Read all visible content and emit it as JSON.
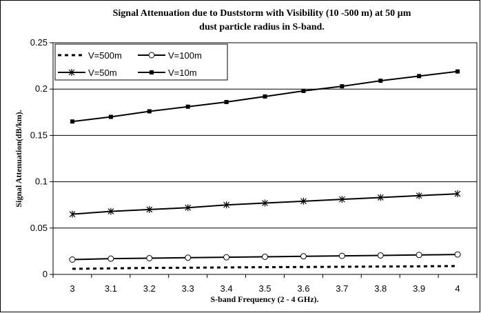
{
  "chart_data": {
    "type": "line",
    "title_line1": "Signal Attenuation due to Duststorm with Visibility (10 -500 m) at 50 µm",
    "title_line2": "dust particle radius in S-band.",
    "xlabel": "S-band Frequency (2 - 4 GHz).",
    "ylabel": "Signal Attenuation(dB/km).",
    "x": [
      3,
      3.1,
      3.2,
      3.3,
      3.4,
      3.5,
      3.6,
      3.7,
      3.8,
      3.9,
      4
    ],
    "x_tick_labels": [
      "3",
      "3.1",
      "3.2",
      "3.3",
      "3.4",
      "3.5",
      "3.6",
      "3.7",
      "3.8",
      "3.9",
      "4"
    ],
    "y_tick_labels": [
      "0",
      "0.05",
      "0.1",
      "0.15",
      "0.2",
      "0.25"
    ],
    "ylim": [
      0,
      0.25
    ],
    "grid": "horizontal",
    "legend_position": "top-left",
    "series": [
      {
        "name": "V=500m",
        "marker": "none",
        "dashed": true,
        "color": "#000000",
        "values": [
          0.006,
          0.0065,
          0.007,
          0.0072,
          0.0075,
          0.0078,
          0.008,
          0.0082,
          0.0085,
          0.0087,
          0.009
        ]
      },
      {
        "name": "V=100m",
        "marker": "circle",
        "dashed": false,
        "color": "#000000",
        "values": [
          0.016,
          0.017,
          0.0175,
          0.018,
          0.0185,
          0.019,
          0.0195,
          0.02,
          0.0205,
          0.021,
          0.0215
        ]
      },
      {
        "name": "V=50m",
        "marker": "asterisk",
        "dashed": false,
        "color": "#000000",
        "values": [
          0.065,
          0.068,
          0.07,
          0.072,
          0.075,
          0.077,
          0.079,
          0.081,
          0.083,
          0.085,
          0.087
        ]
      },
      {
        "name": "V=10m",
        "marker": "square",
        "dashed": false,
        "color": "#000000",
        "values": [
          0.165,
          0.17,
          0.176,
          0.181,
          0.186,
          0.192,
          0.198,
          0.203,
          0.209,
          0.214,
          0.219
        ]
      }
    ]
  }
}
